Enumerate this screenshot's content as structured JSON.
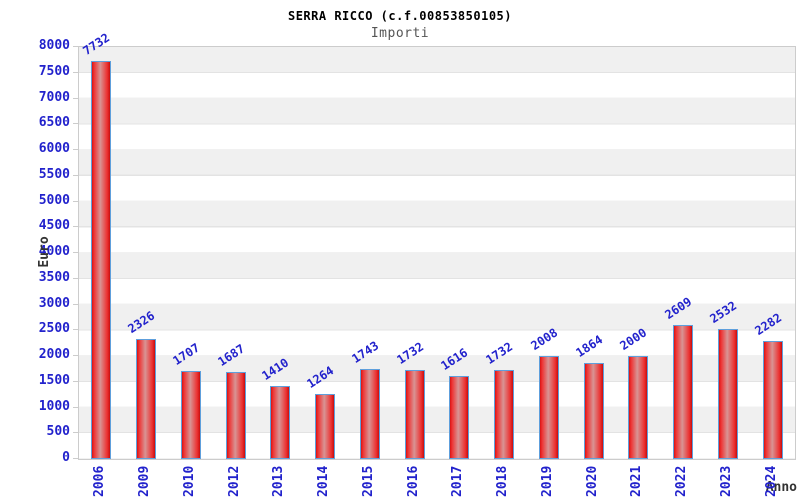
{
  "header": {
    "title": "SERRA RICCO (c.f.00853850105)",
    "subtitle": "Importi"
  },
  "chart_data": {
    "type": "bar",
    "title": "SERRA RICCO (c.f.00853850105)",
    "subtitle": "Importi",
    "xlabel": "Anno",
    "ylabel": "Euro",
    "categories": [
      "2006",
      "2009",
      "2010",
      "2012",
      "2013",
      "2014",
      "2015",
      "2016",
      "2017",
      "2018",
      "2019",
      "2020",
      "2021",
      "2022",
      "2023",
      "2024"
    ],
    "values": [
      7732,
      2326,
      1707,
      1687,
      1410,
      1264,
      1743,
      1732,
      1616,
      1732,
      2008,
      1864,
      2000,
      2609,
      2532,
      2282
    ],
    "ylim": [
      0,
      8000
    ],
    "ytick_step": 500,
    "grid": "horizontal-bands-alternating",
    "legend": "none",
    "colors": {
      "bar_fill_dark": "#d91212",
      "bar_fill_light": "#d89494",
      "bar_border": "#5e9fdc",
      "tick_text": "#2222cc",
      "value_label_text": "#2222cc",
      "axis_title_text": "#333333",
      "subtitle_text": "#555555",
      "band_gray": "#f0f0f0",
      "band_white": "#ffffff",
      "plot_border": "#cccccc"
    }
  }
}
